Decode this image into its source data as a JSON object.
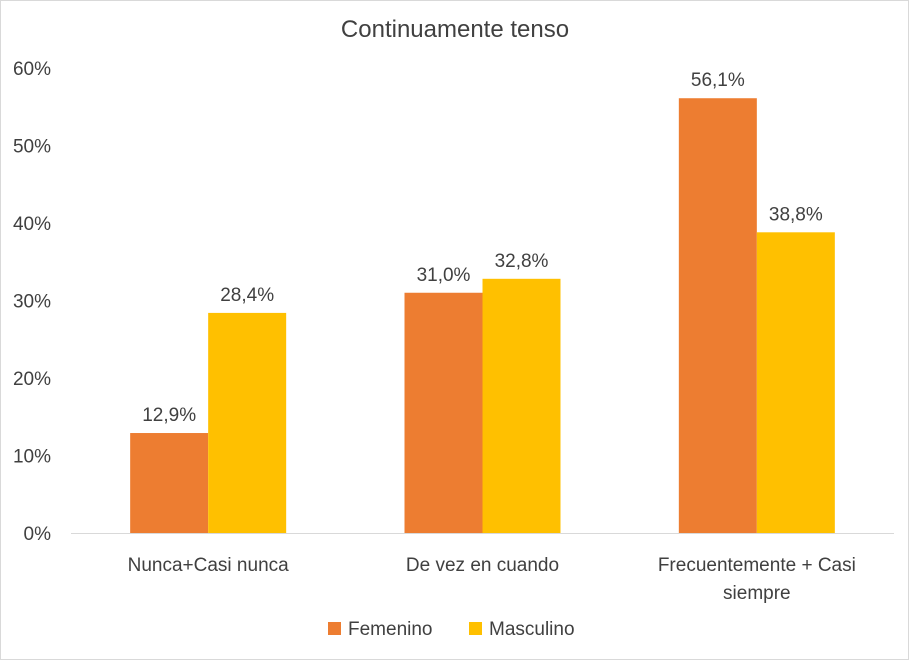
{
  "chart_data": {
    "type": "bar",
    "title": "Continuamente tenso",
    "categories": [
      [
        "Nunca+Casi nunca"
      ],
      [
        "De vez en cuando"
      ],
      [
        "Frecuentemente + Casi",
        "siempre"
      ]
    ],
    "series": [
      {
        "name": "Femenino",
        "color": "#ED7D31",
        "values": [
          12.9,
          31.0,
          56.1
        ],
        "labels": [
          "12,9%",
          "31,0%",
          "56,1%"
        ]
      },
      {
        "name": "Masculino",
        "color": "#FFC000",
        "values": [
          28.4,
          32.8,
          38.8
        ],
        "labels": [
          "28,4%",
          "32,8%",
          "38,8%"
        ]
      }
    ],
    "y_ticks": [
      {
        "value": 0,
        "label": "0%"
      },
      {
        "value": 10,
        "label": "10%"
      },
      {
        "value": 20,
        "label": "20%"
      },
      {
        "value": 30,
        "label": "30%"
      },
      {
        "value": 40,
        "label": "40%"
      },
      {
        "value": 50,
        "label": "50%"
      },
      {
        "value": 60,
        "label": "60%"
      }
    ],
    "ylim": [
      0,
      60
    ],
    "grid": false,
    "legend_position": "bottom"
  }
}
